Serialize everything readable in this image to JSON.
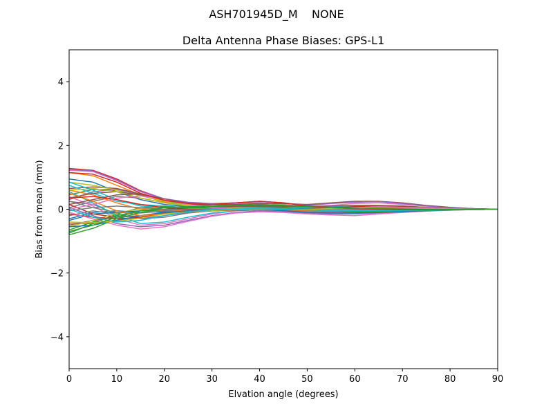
{
  "figure": {
    "suptitle": "ASH701945D_M    NONE"
  },
  "chart_data": {
    "type": "line",
    "title": "Delta Antenna Phase Biases: GPS-L1",
    "xlabel": "Elvation angle (degrees)",
    "ylabel": "Bias from mean (mm)",
    "xlim": [
      0,
      90
    ],
    "ylim": [
      -5,
      5
    ],
    "x_ticks": [
      0,
      10,
      20,
      30,
      40,
      50,
      60,
      70,
      80,
      90
    ],
    "y_ticks": [
      -4,
      -2,
      0,
      2,
      4
    ],
    "y_tick_labels": [
      "−4",
      "−2",
      "0",
      "2",
      "4"
    ],
    "grid": false,
    "legend": "none",
    "x": [
      0,
      5,
      10,
      15,
      20,
      25,
      30,
      35,
      40,
      45,
      50,
      55,
      60,
      65,
      70,
      75,
      80,
      85,
      90
    ],
    "series": [
      {
        "color": "#1f77b4",
        "values": [
          0.95,
          0.85,
          0.55,
          0.3,
          0.15,
          0.08,
          0.05,
          0.08,
          0.12,
          0.1,
          0.05,
          0.02,
          0.0,
          -0.02,
          -0.03,
          -0.03,
          -0.02,
          -0.01,
          0.0
        ]
      },
      {
        "color": "#ff7f0e",
        "values": [
          1.15,
          1.05,
          0.75,
          0.45,
          0.22,
          0.12,
          0.08,
          0.1,
          0.15,
          0.1,
          0.05,
          0.05,
          0.05,
          0.05,
          0.04,
          0.03,
          0.02,
          0.01,
          0.0
        ]
      },
      {
        "color": "#2ca02c",
        "values": [
          0.45,
          0.62,
          0.62,
          0.45,
          0.25,
          0.12,
          0.1,
          0.15,
          0.2,
          0.15,
          0.05,
          0.0,
          -0.05,
          -0.05,
          -0.04,
          -0.02,
          -0.01,
          0.0,
          0.0
        ]
      },
      {
        "color": "#d62728",
        "values": [
          1.28,
          1.22,
          0.95,
          0.58,
          0.32,
          0.2,
          0.17,
          0.2,
          0.25,
          0.2,
          0.1,
          0.05,
          0.0,
          -0.03,
          -0.04,
          -0.03,
          -0.02,
          -0.01,
          0.0
        ]
      },
      {
        "color": "#9467bd",
        "values": [
          0.3,
          0.55,
          0.62,
          0.45,
          0.25,
          0.12,
          0.08,
          0.05,
          0.02,
          -0.02,
          -0.05,
          -0.08,
          -0.1,
          -0.08,
          -0.06,
          -0.04,
          -0.02,
          -0.01,
          0.0
        ]
      },
      {
        "color": "#8c564b",
        "values": [
          0.65,
          0.7,
          0.65,
          0.48,
          0.28,
          0.15,
          0.1,
          0.08,
          0.08,
          0.05,
          0.0,
          -0.02,
          -0.05,
          -0.05,
          -0.04,
          -0.03,
          -0.02,
          -0.01,
          0.0
        ]
      },
      {
        "color": "#e377c2",
        "values": [
          1.22,
          1.18,
          0.9,
          0.55,
          0.3,
          0.18,
          0.15,
          0.18,
          0.2,
          0.15,
          0.08,
          0.12,
          0.18,
          0.2,
          0.15,
          0.1,
          0.05,
          0.02,
          0.0
        ]
      },
      {
        "color": "#7f7f7f",
        "values": [
          0.05,
          0.25,
          0.4,
          0.35,
          0.2,
          0.1,
          0.05,
          0.05,
          0.05,
          0.02,
          0.0,
          -0.02,
          -0.05,
          -0.05,
          -0.05,
          -0.04,
          -0.02,
          -0.01,
          0.0
        ]
      },
      {
        "color": "#bcbd22",
        "values": [
          0.85,
          0.75,
          0.6,
          0.42,
          0.25,
          0.12,
          0.08,
          0.08,
          0.1,
          0.08,
          0.03,
          0.0,
          0.0,
          0.0,
          0.0,
          0.0,
          0.0,
          0.0,
          0.0
        ]
      },
      {
        "color": "#17becf",
        "values": [
          0.75,
          0.5,
          0.25,
          0.15,
          0.1,
          0.05,
          0.02,
          0.02,
          0.03,
          0.02,
          0.0,
          -0.02,
          -0.03,
          -0.03,
          -0.03,
          -0.02,
          -0.01,
          0.0,
          0.0
        ]
      },
      {
        "color": "#1f77b4",
        "values": [
          -0.3,
          -0.1,
          -0.05,
          -0.1,
          -0.08,
          -0.05,
          -0.03,
          -0.02,
          0.0,
          0.0,
          0.02,
          0.05,
          0.08,
          0.1,
          0.08,
          0.05,
          0.02,
          0.01,
          0.0
        ]
      },
      {
        "color": "#ff7f0e",
        "values": [
          -0.45,
          -0.45,
          -0.35,
          -0.25,
          -0.12,
          -0.05,
          0.0,
          0.03,
          0.05,
          0.05,
          0.05,
          0.08,
          0.1,
          0.1,
          0.08,
          0.05,
          0.03,
          0.01,
          0.0
        ]
      },
      {
        "color": "#2ca02c",
        "values": [
          -0.75,
          -0.45,
          -0.15,
          0.05,
          0.08,
          0.05,
          0.05,
          0.1,
          0.15,
          0.12,
          0.1,
          0.08,
          0.05,
          0.03,
          0.02,
          0.01,
          0.0,
          0.0,
          0.0
        ]
      },
      {
        "color": "#d62728",
        "values": [
          0.15,
          -0.15,
          -0.25,
          -0.2,
          -0.1,
          -0.05,
          0.0,
          0.02,
          0.05,
          0.05,
          0.05,
          0.05,
          0.05,
          0.05,
          0.04,
          0.03,
          0.02,
          0.01,
          0.0
        ]
      },
      {
        "color": "#9467bd",
        "values": [
          0.25,
          0.15,
          -0.15,
          -0.3,
          -0.2,
          -0.1,
          -0.05,
          -0.02,
          0.0,
          -0.02,
          -0.05,
          -0.08,
          -0.1,
          -0.08,
          -0.05,
          -0.03,
          -0.01,
          0.0,
          0.0
        ]
      },
      {
        "color": "#8c564b",
        "values": [
          -0.5,
          -0.35,
          -0.25,
          -0.2,
          -0.12,
          -0.08,
          -0.05,
          -0.02,
          0.0,
          0.0,
          0.0,
          0.02,
          0.03,
          0.03,
          0.02,
          0.02,
          0.01,
          0.0,
          0.0
        ]
      },
      {
        "color": "#e377c2",
        "values": [
          0.4,
          0.1,
          -0.3,
          -0.5,
          -0.45,
          -0.3,
          -0.15,
          -0.05,
          0.0,
          0.0,
          0.02,
          0.05,
          0.05,
          0.05,
          0.04,
          0.03,
          0.02,
          0.01,
          0.0
        ]
      },
      {
        "color": "#7f7f7f",
        "values": [
          -0.2,
          -0.05,
          -0.15,
          -0.3,
          -0.25,
          -0.12,
          -0.05,
          -0.02,
          0.0,
          0.0,
          0.0,
          0.0,
          0.0,
          0.0,
          0.0,
          0.0,
          0.0,
          0.0,
          0.0
        ]
      },
      {
        "color": "#bcbd22",
        "values": [
          -0.55,
          -0.35,
          -0.12,
          0.02,
          0.05,
          0.03,
          0.0,
          0.0,
          0.02,
          0.02,
          0.0,
          0.0,
          0.0,
          0.0,
          0.0,
          0.0,
          0.0,
          0.0,
          0.0
        ]
      },
      {
        "color": "#17becf",
        "values": [
          0.55,
          0.2,
          -0.2,
          -0.45,
          -0.4,
          -0.25,
          -0.12,
          -0.05,
          -0.02,
          0.0,
          0.0,
          0.0,
          -0.02,
          -0.02,
          -0.02,
          -0.01,
          0.0,
          0.0,
          0.0
        ]
      },
      {
        "color": "#1f77b4",
        "values": [
          -0.35,
          -0.15,
          -0.1,
          -0.05,
          -0.02,
          0.0,
          0.0,
          0.02,
          0.05,
          0.05,
          0.05,
          0.05,
          0.05,
          0.05,
          0.04,
          0.03,
          0.02,
          0.01,
          0.0
        ]
      },
      {
        "color": "#ff7f0e",
        "values": [
          0.6,
          0.45,
          0.2,
          0.0,
          -0.05,
          -0.05,
          -0.02,
          0.0,
          0.0,
          -0.02,
          -0.05,
          -0.05,
          -0.05,
          -0.05,
          -0.04,
          -0.03,
          -0.02,
          -0.01,
          0.0
        ]
      },
      {
        "color": "#2ca02c",
        "values": [
          -0.65,
          -0.4,
          -0.2,
          -0.05,
          0.0,
          0.02,
          0.02,
          0.05,
          0.08,
          0.08,
          0.05,
          0.05,
          0.05,
          0.04,
          0.03,
          0.02,
          0.01,
          0.0,
          0.0
        ]
      },
      {
        "color": "#d62728",
        "values": [
          -0.15,
          -0.25,
          -0.3,
          -0.25,
          -0.15,
          -0.08,
          -0.05,
          -0.03,
          -0.02,
          -0.02,
          -0.02,
          0.0,
          0.02,
          0.03,
          0.03,
          0.02,
          0.01,
          0.0,
          0.0
        ]
      },
      {
        "color": "#9467bd",
        "values": [
          0.05,
          -0.2,
          -0.45,
          -0.55,
          -0.5,
          -0.35,
          -0.2,
          -0.1,
          -0.05,
          -0.08,
          -0.12,
          -0.15,
          -0.15,
          -0.12,
          -0.08,
          -0.05,
          -0.02,
          -0.01,
          0.0
        ]
      },
      {
        "color": "#8c564b",
        "values": [
          0.35,
          0.5,
          0.55,
          0.45,
          0.3,
          0.2,
          0.15,
          0.15,
          0.18,
          0.18,
          0.15,
          0.2,
          0.25,
          0.25,
          0.2,
          0.12,
          0.06,
          0.02,
          0.0
        ]
      },
      {
        "color": "#e377c2",
        "values": [
          -0.1,
          -0.3,
          -0.5,
          -0.62,
          -0.55,
          -0.38,
          -0.22,
          -0.12,
          -0.08,
          -0.1,
          -0.15,
          -0.18,
          -0.2,
          -0.15,
          -0.1,
          -0.06,
          -0.03,
          -0.01,
          0.0
        ]
      },
      {
        "color": "#7f7f7f",
        "values": [
          0.25,
          0.05,
          -0.1,
          -0.12,
          -0.05,
          0.0,
          0.02,
          0.0,
          -0.02,
          -0.05,
          -0.08,
          -0.1,
          -0.1,
          -0.1,
          -0.08,
          -0.05,
          -0.03,
          -0.01,
          0.0
        ]
      },
      {
        "color": "#bcbd22",
        "values": [
          0.6,
          0.65,
          0.55,
          0.35,
          0.2,
          0.1,
          0.05,
          0.05,
          0.05,
          0.05,
          0.05,
          0.1,
          0.12,
          0.12,
          0.1,
          0.06,
          0.03,
          0.01,
          0.0
        ]
      },
      {
        "color": "#17becf",
        "values": [
          0.85,
          0.6,
          0.3,
          0.1,
          0.05,
          0.02,
          0.0,
          0.02,
          0.05,
          0.05,
          0.05,
          0.08,
          0.1,
          0.1,
          0.08,
          0.05,
          0.02,
          0.01,
          0.0
        ]
      },
      {
        "color": "#1f77b4",
        "values": [
          -0.55,
          -0.5,
          -0.35,
          -0.2,
          -0.1,
          -0.05,
          -0.02,
          0.0,
          0.0,
          -0.05,
          -0.1,
          -0.12,
          -0.12,
          -0.1,
          -0.08,
          -0.05,
          -0.02,
          -0.01,
          0.0
        ]
      },
      {
        "color": "#ff7f0e",
        "values": [
          0.5,
          0.25,
          -0.05,
          -0.2,
          -0.15,
          -0.08,
          -0.03,
          0.0,
          0.02,
          0.0,
          -0.02,
          -0.02,
          -0.02,
          -0.02,
          -0.02,
          -0.01,
          0.0,
          0.0,
          0.0
        ]
      },
      {
        "color": "#2ca02c",
        "values": [
          -0.8,
          -0.6,
          -0.3,
          -0.1,
          0.0,
          0.05,
          0.05,
          0.08,
          0.1,
          0.05,
          -0.02,
          -0.05,
          -0.08,
          -0.08,
          -0.06,
          -0.04,
          -0.02,
          -0.01,
          0.0
        ]
      },
      {
        "color": "#d62728",
        "values": [
          0.35,
          0.4,
          0.3,
          0.15,
          0.05,
          0.0,
          -0.02,
          0.0,
          0.02,
          0.02,
          0.02,
          0.05,
          0.08,
          0.1,
          0.08,
          0.05,
          0.02,
          0.01,
          0.0
        ]
      },
      {
        "color": "#9467bd",
        "values": [
          1.25,
          1.2,
          0.92,
          0.56,
          0.33,
          0.22,
          0.18,
          0.2,
          0.24,
          0.2,
          0.12,
          0.18,
          0.22,
          0.24,
          0.18,
          0.1,
          0.05,
          0.02,
          0.0
        ]
      },
      {
        "color": "#8c564b",
        "values": [
          0.15,
          0.3,
          0.45,
          0.48,
          0.32,
          0.18,
          0.1,
          0.08,
          0.1,
          0.1,
          0.08,
          0.1,
          0.12,
          0.12,
          0.1,
          0.06,
          0.03,
          0.01,
          0.0
        ]
      },
      {
        "color": "#e377c2",
        "values": [
          0.0,
          0.15,
          0.35,
          0.42,
          0.3,
          0.15,
          0.05,
          0.02,
          0.02,
          0.0,
          -0.02,
          0.0,
          0.05,
          0.08,
          0.06,
          0.04,
          0.02,
          0.01,
          0.0
        ]
      },
      {
        "color": "#7f7f7f",
        "values": [
          -0.05,
          0.05,
          0.1,
          0.05,
          0.0,
          -0.02,
          -0.02,
          0.0,
          0.02,
          0.02,
          0.0,
          0.0,
          0.0,
          0.0,
          0.0,
          0.0,
          0.0,
          0.0,
          0.0
        ]
      },
      {
        "color": "#bcbd22",
        "values": [
          -0.4,
          -0.42,
          -0.38,
          -0.28,
          -0.15,
          -0.08,
          -0.04,
          -0.02,
          0.0,
          0.0,
          0.0,
          0.02,
          0.03,
          0.03,
          0.02,
          0.02,
          0.01,
          0.0,
          0.0
        ]
      },
      {
        "color": "#17becf",
        "values": [
          0.0,
          -0.25,
          -0.4,
          -0.35,
          -0.2,
          -0.08,
          -0.02,
          0.0,
          0.02,
          0.0,
          -0.02,
          -0.05,
          -0.05,
          -0.05,
          -0.04,
          -0.03,
          -0.02,
          -0.01,
          0.0
        ]
      },
      {
        "color": "#d62728",
        "values": [
          1.15,
          1.1,
          0.85,
          0.5,
          0.28,
          0.18,
          0.15,
          0.2,
          0.25,
          0.2,
          0.1,
          0.05,
          0.02,
          0.0,
          -0.02,
          -0.02,
          -0.01,
          0.0,
          0.0
        ]
      },
      {
        "color": "#2ca02c",
        "values": [
          -0.7,
          -0.5,
          -0.25,
          -0.05,
          0.05,
          0.08,
          0.08,
          0.12,
          0.15,
          0.12,
          0.08,
          0.05,
          0.03,
          0.02,
          0.01,
          0.0,
          0.0,
          0.0,
          0.0
        ]
      }
    ]
  }
}
